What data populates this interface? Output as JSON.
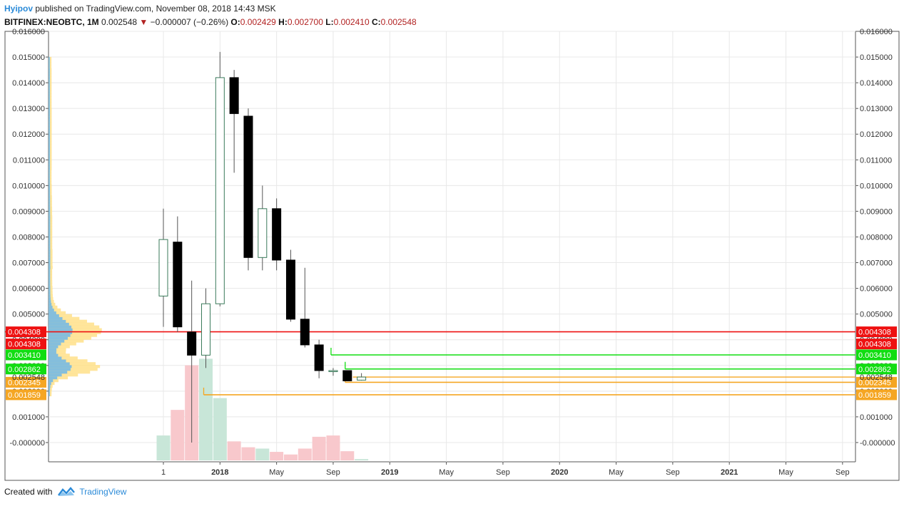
{
  "header": {
    "author": "Hyipov",
    "published_text": "published on TradingView.com, November 08, 2018 14:43 MSK",
    "symbol": "BITFINEX:NEOBTC, 1M",
    "last": "0.002548",
    "change_arrow": "▼",
    "change": "−0.000007 (−0.26%)",
    "o_label": "O:",
    "o_value": "0.002429",
    "h_label": "H:",
    "h_value": "0.002700",
    "l_label": "L:",
    "l_value": "0.002410",
    "c_label": "C:",
    "c_value": "0.002548"
  },
  "footer": {
    "created_with": "Created with",
    "brand": "TradingView",
    "logo_icon": "tradingview-logo-icon"
  },
  "colors": {
    "up_candle_border": "#3a7a5a",
    "down_candle_fill": "#000000",
    "wick": "#555555",
    "volume_up": "#c8e6d8",
    "volume_down": "#f8c8cc",
    "resistance_red": "#ee1111",
    "support_green": "#11dd11",
    "support_orange": "#f5a623",
    "profile_blue": "#6fb7e8",
    "profile_yellow": "#ffe08a",
    "grid": "#e8e8e8"
  },
  "chart_data": {
    "type": "candlestick",
    "ylim": [
      -0.00075,
      0.016
    ],
    "y_ticks": [
      "0.016000",
      "0.015000",
      "0.014000",
      "0.013000",
      "0.012000",
      "0.011000",
      "0.010000",
      "0.009000",
      "0.008000",
      "0.007000",
      "0.006000",
      "0.005000",
      "0.004000",
      "0.003000",
      "0.002000",
      "0.001000",
      "-0.000000"
    ],
    "y_tick_values": [
      0.016,
      0.015,
      0.014,
      0.013,
      0.012,
      0.011,
      0.01,
      0.009,
      0.008,
      0.007,
      0.006,
      0.005,
      0.004,
      0.003,
      0.002,
      0.001,
      0.0
    ],
    "x_ticks": [
      {
        "label": "1",
        "month_index": 0,
        "bold": false
      },
      {
        "label": "2018",
        "month_index": 4,
        "bold": true
      },
      {
        "label": "May",
        "month_index": 8,
        "bold": false
      },
      {
        "label": "Sep",
        "month_index": 12,
        "bold": false
      },
      {
        "label": "2019",
        "month_index": 16,
        "bold": true
      },
      {
        "label": "May",
        "month_index": 20,
        "bold": false
      },
      {
        "label": "Sep",
        "month_index": 24,
        "bold": false
      },
      {
        "label": "2020",
        "month_index": 28,
        "bold": true
      },
      {
        "label": "May",
        "month_index": 32,
        "bold": false
      },
      {
        "label": "Sep",
        "month_index": 36,
        "bold": false
      },
      {
        "label": "2021",
        "month_index": 40,
        "bold": true
      },
      {
        "label": "May",
        "month_index": 44,
        "bold": false
      },
      {
        "label": "Sep",
        "month_index": 48,
        "bold": false
      }
    ],
    "candles": [
      {
        "i": 0,
        "o": 0.0057,
        "h": 0.0091,
        "l": 0.0045,
        "c": 0.0079
      },
      {
        "i": 1,
        "o": 0.0078,
        "h": 0.0088,
        "l": 0.0043,
        "c": 0.0045
      },
      {
        "i": 2,
        "o": 0.0043,
        "h": 0.0063,
        "l": -0.0,
        "c": 0.0034
      },
      {
        "i": 3,
        "o": 0.0034,
        "h": 0.006,
        "l": 0.0029,
        "c": 0.0054
      },
      {
        "i": 4,
        "o": 0.0054,
        "h": 0.0152,
        "l": 0.0053,
        "c": 0.0142
      },
      {
        "i": 5,
        "o": 0.0142,
        "h": 0.0145,
        "l": 0.0105,
        "c": 0.0128
      },
      {
        "i": 6,
        "o": 0.0127,
        "h": 0.013,
        "l": 0.0067,
        "c": 0.0072
      },
      {
        "i": 7,
        "o": 0.0072,
        "h": 0.01,
        "l": 0.0067,
        "c": 0.0091
      },
      {
        "i": 8,
        "o": 0.0091,
        "h": 0.0095,
        "l": 0.0067,
        "c": 0.0071
      },
      {
        "i": 9,
        "o": 0.0071,
        "h": 0.0075,
        "l": 0.0047,
        "c": 0.0048
      },
      {
        "i": 10,
        "o": 0.0048,
        "h": 0.0068,
        "l": 0.0037,
        "c": 0.0038
      },
      {
        "i": 11,
        "o": 0.0038,
        "h": 0.004,
        "l": 0.0025,
        "c": 0.0028
      },
      {
        "i": 12,
        "o": 0.0028,
        "h": 0.0029,
        "l": 0.0026,
        "c": 0.0028
      },
      {
        "i": 13,
        "o": 0.0028,
        "h": 0.0028,
        "l": 0.0024,
        "c": 0.0024
      },
      {
        "i": 14,
        "o": 0.002429,
        "h": 0.0027,
        "l": 0.00241,
        "c": 0.002548
      }
    ],
    "volume_rel": [
      {
        "i": 0,
        "v": 0.38,
        "up": true
      },
      {
        "i": 1,
        "v": 0.77,
        "up": false
      },
      {
        "i": 2,
        "v": 1.45,
        "up": false
      },
      {
        "i": 3,
        "v": 1.55,
        "up": true
      },
      {
        "i": 4,
        "v": 0.95,
        "up": true
      },
      {
        "i": 5,
        "v": 0.29,
        "up": false
      },
      {
        "i": 6,
        "v": 0.2,
        "up": false
      },
      {
        "i": 7,
        "v": 0.18,
        "up": true
      },
      {
        "i": 8,
        "v": 0.13,
        "up": false
      },
      {
        "i": 9,
        "v": 0.09,
        "up": false
      },
      {
        "i": 10,
        "v": 0.18,
        "up": false
      },
      {
        "i": 11,
        "v": 0.36,
        "up": false
      },
      {
        "i": 12,
        "v": 0.38,
        "up": false
      },
      {
        "i": 13,
        "v": 0.14,
        "up": false
      },
      {
        "i": 14,
        "v": 0.02,
        "up": true
      }
    ],
    "levels": [
      {
        "value": 0.004308,
        "label": "0.004308",
        "color": "#ee1111",
        "from_index": -99,
        "tag": "red"
      },
      {
        "value": 0.004308,
        "label": "0.004308",
        "color": "#ee1111",
        "from_index": null,
        "tag": "red-second",
        "offset_label": true
      },
      {
        "value": 0.00341,
        "label": "0.003410",
        "color": "#11dd11",
        "from_index": 12,
        "tag": "green"
      },
      {
        "value": 0.002862,
        "label": "0.002862",
        "color": "#11dd11",
        "from_index": 13,
        "tag": "green"
      },
      {
        "value": 0.002345,
        "label": "0.002345",
        "color": "#f5a623",
        "from_index": 13,
        "tag": "orange"
      },
      {
        "value": 0.001859,
        "label": "0.001859",
        "color": "#f5a623",
        "from_index": 3,
        "tag": "orange"
      }
    ],
    "current_price": {
      "value": 0.002548,
      "label": "0.002548"
    }
  }
}
